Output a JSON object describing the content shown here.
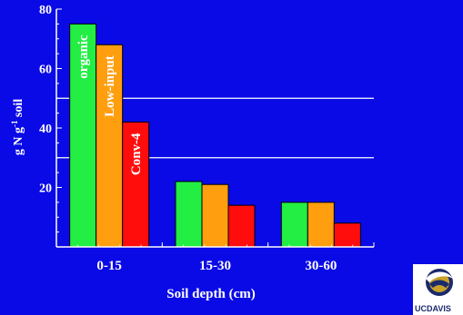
{
  "chart_data": {
    "type": "bar",
    "ylabel": "g N g-1 soil",
    "ylabel_parts": {
      "base": "g N g",
      "sup": "-1",
      "rest": " soil"
    },
    "xlabel": "Soil depth (cm)",
    "categories": [
      "0-15",
      "15-30",
      "30-60"
    ],
    "series": [
      {
        "name": "organic",
        "values": [
          75,
          22,
          15
        ],
        "color": "#22ee44"
      },
      {
        "name": "Low-input",
        "values": [
          68,
          21,
          15
        ],
        "color": "#ff9e0f"
      },
      {
        "name": "Conv-4",
        "values": [
          42,
          14,
          8
        ],
        "color": "#ff0d0d"
      }
    ],
    "ylim": [
      0,
      80
    ],
    "yticks": [
      20,
      40,
      60,
      80
    ],
    "grid": true,
    "gridlines": [
      30,
      50
    ],
    "legend": "labels inside first group bars",
    "colors": {
      "background": "#0a0ae6",
      "axis": "#ffffff",
      "grid": "#ffffff",
      "bar_outline": "#000000"
    }
  },
  "logo": {
    "text": "UCDAVIS",
    "icon": "uc-davis-mustang-logo-icon"
  }
}
